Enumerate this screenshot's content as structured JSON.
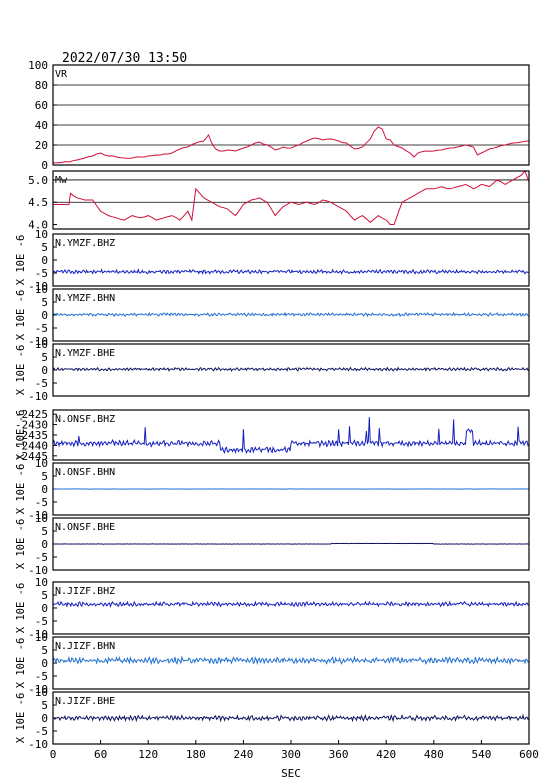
{
  "title": "2022/07/30 13:50",
  "chart_data": {
    "type": "line",
    "xlabel": "SEC",
    "xlim": [
      0,
      600
    ],
    "x_ticks": [
      "0",
      "60",
      "120",
      "180",
      "240",
      "300",
      "360",
      "420",
      "480",
      "540",
      "600"
    ],
    "colors": {
      "red": "#d0103a",
      "blue": "#1420c0",
      "lightblue": "#2070d0",
      "navy": "#101060"
    },
    "panels": [
      {
        "label": "VR",
        "ylim": [
          0,
          100
        ],
        "yticks": [
          "0",
          "20",
          "40",
          "60",
          "80",
          "100"
        ],
        "grid": [
          20,
          40,
          60,
          80
        ],
        "color": "#d0103a",
        "x": [
          0,
          20,
          30,
          40,
          50,
          60,
          70,
          80,
          90,
          100,
          110,
          120,
          130,
          140,
          150,
          160,
          170,
          180,
          190,
          196,
          200,
          205,
          210,
          220,
          230,
          240,
          250,
          260,
          270,
          280,
          290,
          300,
          310,
          320,
          330,
          340,
          350,
          360,
          370,
          380,
          390,
          400,
          405,
          410,
          415,
          420,
          425,
          430,
          440,
          450,
          455,
          460,
          470,
          480,
          490,
          500,
          510,
          520,
          530,
          535,
          540,
          550,
          560,
          570,
          580,
          590,
          600
        ],
        "y": [
          2,
          3,
          5,
          7,
          9,
          12,
          9,
          8,
          7,
          7,
          8,
          9,
          10,
          11,
          12,
          16,
          18,
          22,
          24,
          30,
          22,
          16,
          14,
          15,
          14,
          17,
          20,
          23,
          20,
          15,
          18,
          17,
          20,
          24,
          27,
          25,
          26,
          24,
          22,
          16,
          18,
          26,
          34,
          38,
          36,
          26,
          25,
          20,
          17,
          12,
          8,
          12,
          14,
          14,
          15,
          17,
          18,
          20,
          18,
          10,
          12,
          16,
          18,
          20,
          22,
          23,
          24
        ]
      },
      {
        "label": "Mw",
        "ylim": [
          3.9,
          5.2
        ],
        "yticks": [
          "4.0",
          "4.5",
          "5.0"
        ],
        "grid": [
          4.5,
          5.0
        ],
        "color": "#d0103a",
        "x": [
          0,
          20,
          22,
          30,
          40,
          50,
          60,
          70,
          80,
          90,
          100,
          110,
          120,
          130,
          140,
          150,
          160,
          170,
          175,
          180,
          190,
          200,
          210,
          220,
          230,
          240,
          250,
          260,
          270,
          280,
          290,
          300,
          310,
          320,
          330,
          340,
          350,
          360,
          370,
          380,
          390,
          400,
          410,
          420,
          425,
          430,
          440,
          450,
          460,
          470,
          480,
          490,
          500,
          510,
          520,
          530,
          540,
          550,
          560,
          570,
          580,
          590,
          595,
          600
        ],
        "y": [
          4.45,
          4.45,
          4.7,
          4.6,
          4.55,
          4.55,
          4.3,
          4.2,
          4.15,
          4.1,
          4.2,
          4.15,
          4.2,
          4.1,
          4.15,
          4.2,
          4.1,
          4.3,
          4.1,
          4.8,
          4.6,
          4.5,
          4.4,
          4.35,
          4.2,
          4.45,
          4.55,
          4.6,
          4.5,
          4.2,
          4.4,
          4.5,
          4.45,
          4.5,
          4.45,
          4.55,
          4.5,
          4.4,
          4.3,
          4.1,
          4.2,
          4.05,
          4.2,
          4.1,
          4.0,
          4.0,
          4.5,
          4.6,
          4.7,
          4.8,
          4.8,
          4.85,
          4.8,
          4.85,
          4.9,
          4.8,
          4.9,
          4.85,
          5.0,
          4.9,
          5.0,
          5.1,
          5.2,
          4.95
        ]
      },
      {
        "label": "N.YMZF.BHZ",
        "ylim": [
          -10,
          10
        ],
        "yticks": [
          "-10",
          "-5",
          "0",
          "5",
          "10"
        ],
        "ylabel": "X 10E -6",
        "color": "#1420c0",
        "baseline": -4.5,
        "amplitude": 0.6
      },
      {
        "label": "N.YMZF.BHN",
        "ylim": [
          -10,
          10
        ],
        "yticks": [
          "-10",
          "-5",
          "0",
          "5",
          "10"
        ],
        "ylabel": "X 10E -6",
        "color": "#2070d0",
        "baseline": 0.2,
        "amplitude": 0.5
      },
      {
        "label": "N.YMZF.BHE",
        "ylim": [
          -10,
          10
        ],
        "yticks": [
          "-10",
          "-5",
          "0",
          "5",
          "10"
        ],
        "ylabel": "X 10E -6",
        "color": "#101060",
        "baseline": 0.3,
        "amplitude": 0.5
      },
      {
        "label": "N.ONSF.BHZ",
        "ylim": [
          -2447,
          -2423
        ],
        "yticks": [
          "-2445",
          "-2440",
          "-2435",
          "-2430",
          "-2425"
        ],
        "ylabel": "X 10E -6",
        "color": "#1420c0",
        "baseline": -2439,
        "amplitude": 1.2
      },
      {
        "label": "N.ONSF.BHN",
        "ylim": [
          -10,
          10
        ],
        "yticks": [
          "-10",
          "-5",
          "0",
          "5",
          "10"
        ],
        "ylabel": "X 10E -6",
        "color": "#2070d0",
        "baseline": 0,
        "amplitude": 0.05
      },
      {
        "label": "N.ONSF.BHE",
        "ylim": [
          -10,
          10
        ],
        "yticks": [
          "-10",
          "-5",
          "0",
          "5",
          "10"
        ],
        "ylabel": "X 10E -6",
        "color": "#101060",
        "baseline": 0,
        "amplitude": 0.05
      },
      {
        "label": "N.JIZF.BHZ",
        "ylim": [
          -10,
          10
        ],
        "yticks": [
          "-10",
          "-5",
          "0",
          "5",
          "10"
        ],
        "ylabel": "X 10E -6",
        "color": "#1420c0",
        "baseline": 1.5,
        "amplitude": 0.7
      },
      {
        "label": "N.JIZF.BHN",
        "ylim": [
          -10,
          10
        ],
        "yticks": [
          "-10",
          "-5",
          "0",
          "5",
          "10"
        ],
        "ylabel": "X 10E -6",
        "color": "#2070d0",
        "baseline": 1.0,
        "amplitude": 1.0
      },
      {
        "label": "N.JIZF.BHE",
        "ylim": [
          -10,
          10
        ],
        "yticks": [
          "-10",
          "-5",
          "0",
          "5",
          "10"
        ],
        "ylabel": "X 10E -6",
        "color": "#101060",
        "baseline": 0,
        "amplitude": 0.8
      }
    ]
  }
}
